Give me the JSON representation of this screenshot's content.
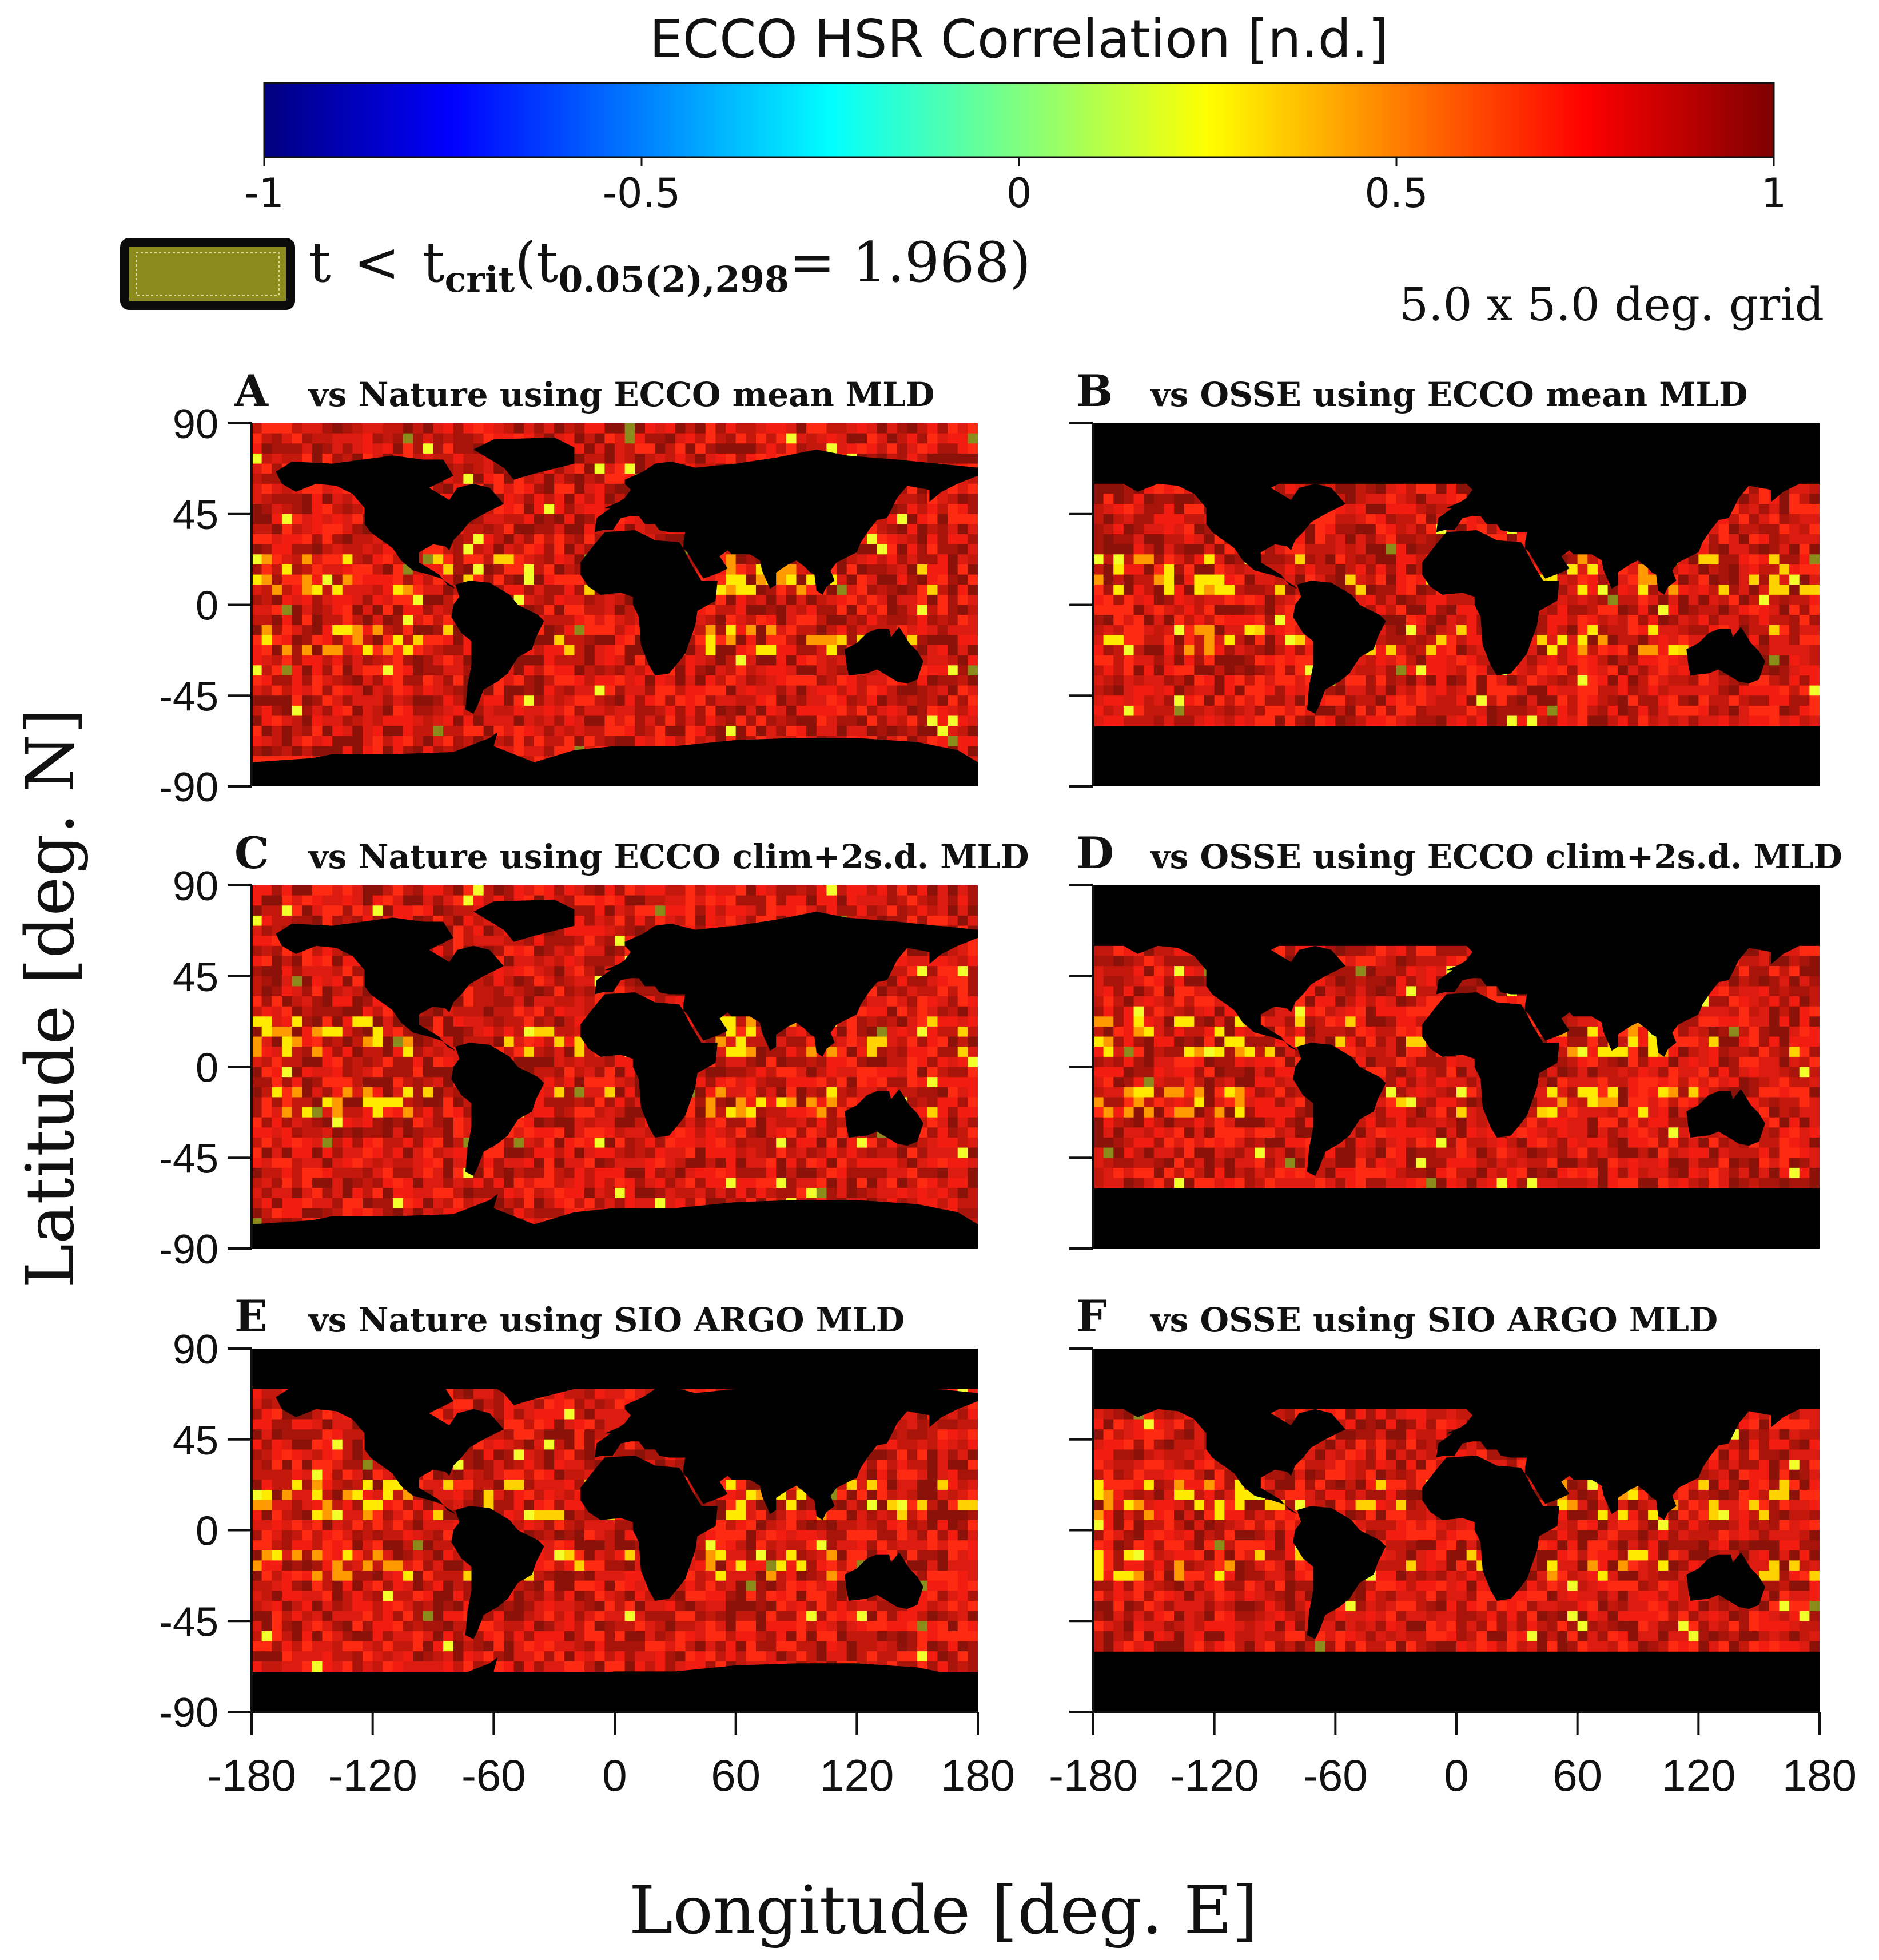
{
  "chart_data": {
    "type": "heatmap",
    "colorbar": {
      "title": "ECCO HSR Correlation [n.d.]",
      "range": [
        -1,
        1
      ],
      "ticks": [
        -1,
        -0.5,
        0,
        0.5,
        1
      ],
      "tick_labels": [
        "-1",
        "-0.5",
        "0",
        "0.5",
        "1"
      ],
      "colormap": "jet",
      "stops": [
        "#00007f",
        "#0000ff",
        "#007fff",
        "#00ffff",
        "#7fff7f",
        "#ffff00",
        "#ff7f00",
        "#ff0000",
        "#7f0000"
      ]
    },
    "legend": {
      "t_label": "t",
      "lt": "<",
      "tcrit_base": "t",
      "tcrit_sub": "crit",
      "paren_open": "(",
      "t_inner": "t",
      "t_inner_sub": "0.05(2),298",
      "eq": "=",
      "value": "1.968",
      "paren_close": ")",
      "swatch_color": "#8c8c1c"
    },
    "grid_label": "5.0 x 5.0 deg. grid",
    "xlabel": "Longitude [deg. E]",
    "ylabel": "Latitude [deg. N]",
    "xlim": [
      -180,
      180
    ],
    "ylim": [
      -90,
      90
    ],
    "xticks": [
      -180,
      -120,
      -60,
      0,
      60,
      120,
      180
    ],
    "xtick_labels": [
      "-180",
      "-120",
      "-60",
      "0",
      "60",
      "120",
      "180"
    ],
    "yticks": [
      90,
      45,
      0,
      -45,
      -90
    ],
    "ytick_labels": [
      "90",
      "45",
      "0",
      "-45",
      "-90"
    ],
    "panels": [
      {
        "letter": "A",
        "title": "vs Nature using ECCO mean MLD",
        "lat_coverage": [
          -85,
          90
        ]
      },
      {
        "letter": "B",
        "title": "vs OSSE using ECCO mean MLD",
        "lat_coverage": [
          -60,
          60
        ]
      },
      {
        "letter": "C",
        "title": "vs Nature using ECCO clim+2s.d. MLD",
        "lat_coverage": [
          -85,
          90
        ]
      },
      {
        "letter": "D",
        "title": "vs OSSE using ECCO clim+2s.d. MLD",
        "lat_coverage": [
          -60,
          60
        ]
      },
      {
        "letter": "E",
        "title": "vs Nature using SIO ARGO MLD",
        "lat_coverage": [
          -70,
          70
        ]
      },
      {
        "letter": "F",
        "title": "vs OSSE using SIO ARGO MLD",
        "lat_coverage": [
          -60,
          60
        ]
      }
    ]
  }
}
